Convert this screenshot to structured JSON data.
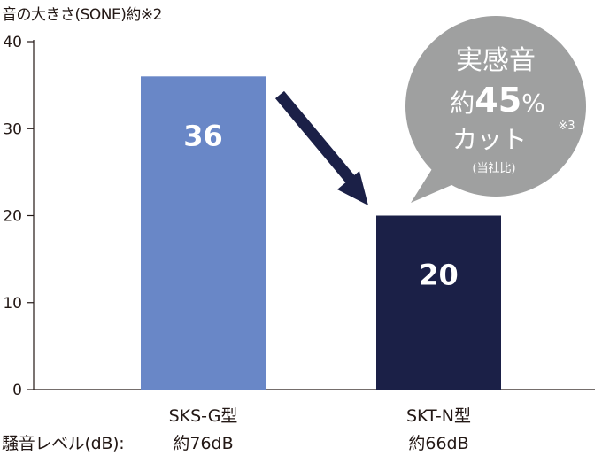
{
  "chart_data": {
    "type": "bar",
    "ylabel": "音の大きさ(SONE)約※2",
    "ylim": [
      0,
      40
    ],
    "yticks": [
      "0",
      "10",
      "20",
      "30",
      "40"
    ],
    "grid": false,
    "categories": [
      "SKS-G型",
      "SKT-N型"
    ],
    "values": [
      36,
      20
    ],
    "value_labels": [
      "36",
      "20"
    ],
    "bar_colors": [
      "#6987c7",
      "#1b2047"
    ],
    "noise_row_label": "騒音レベル(dB):",
    "noise_levels": [
      "約76dB",
      "約66dB"
    ]
  },
  "callout": {
    "line1": "実感音",
    "line2_prefix": "約",
    "line2_value": "45",
    "line2_unit": "%",
    "line3": "カット",
    "footnote": "※3",
    "note": "(当社比)",
    "color": "#9fa0a0"
  },
  "arrow_color": "#1b2047"
}
